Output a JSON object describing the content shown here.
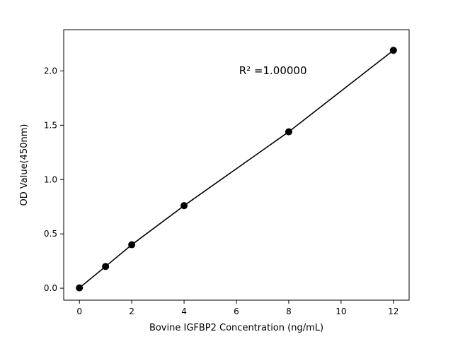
{
  "figure": {
    "background": "#ffffff"
  },
  "chart_data": {
    "type": "scatter",
    "x": [
      0,
      1,
      2,
      4,
      8,
      12
    ],
    "y": [
      0.003,
      0.2,
      0.4,
      0.76,
      1.44,
      2.19
    ],
    "line": true,
    "title": "",
    "xlabel": "Bovine IGFBP2 Concentration (ng/mL)",
    "ylabel": "OD Value(450nm)",
    "xlim": [
      -0.6,
      12.6
    ],
    "ylim": [
      -0.11,
      2.38
    ],
    "xticks": [
      0,
      2,
      4,
      6,
      8,
      10,
      12
    ],
    "xtick_labels": [
      "0",
      "2",
      "4",
      "6",
      "8",
      "10",
      "12"
    ],
    "yticks": [
      0.0,
      0.5,
      1.0,
      1.5,
      2.0
    ],
    "ytick_labels": [
      "0.0",
      "0.5",
      "1.0",
      "1.5",
      "2.0"
    ],
    "annotation": {
      "text": "R² =1.00000",
      "x": 6.1,
      "y": 1.97
    },
    "grid": false,
    "legend": null,
    "line_color": "#000000",
    "marker_color": "#000000",
    "marker_radius": 5
  }
}
